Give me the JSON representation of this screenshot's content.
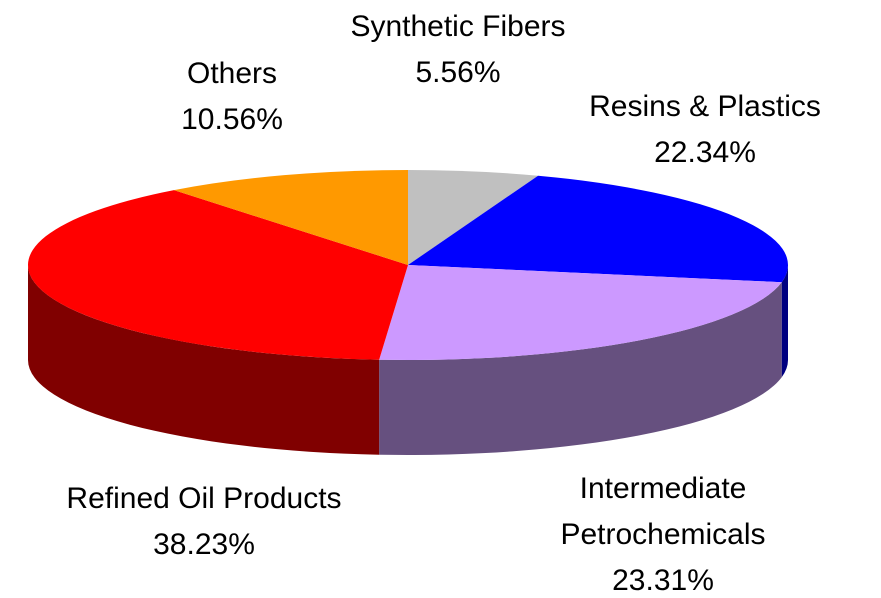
{
  "chart_data": {
    "type": "pie3d",
    "categories": [
      "Synthetic Fibers",
      "Resins & Plastics",
      "Intermediate Petrochemicals",
      "Refined Oil Products",
      "Others"
    ],
    "values": [
      5.56,
      22.34,
      23.31,
      38.23,
      10.56
    ],
    "value_labels": [
      "5.56%",
      "22.34%",
      "23.31%",
      "38.23%",
      "10.56%"
    ],
    "colors": [
      "#c0c0c0",
      "#0000ff",
      "#cc99ff",
      "#ff0000",
      "#ff9900"
    ],
    "side_colors": [
      "#606060",
      "#000080",
      "#66507f",
      "#800000",
      "#805000"
    ]
  }
}
